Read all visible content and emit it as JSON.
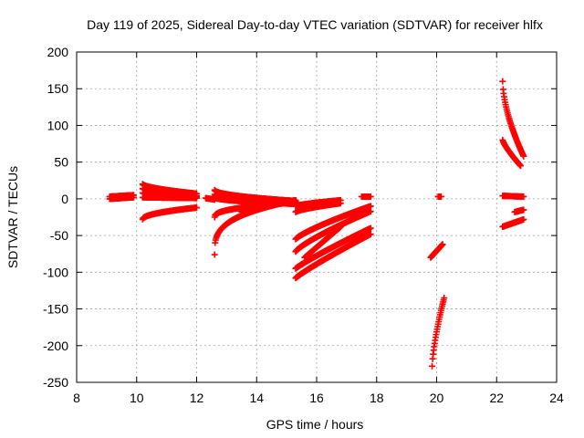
{
  "chart_data": {
    "type": "scatter",
    "title": "Day 119 of 2025, Sidereal Day-to-day VTEC variation (SDTVAR) for receiver hlfx",
    "xlabel": "GPS time / hours",
    "ylabel": "SDTVAR / TECUs",
    "xlim": [
      8,
      24
    ],
    "ylim": [
      -250,
      200
    ],
    "xticks": [
      8,
      10,
      12,
      14,
      16,
      18,
      20,
      22,
      24
    ],
    "yticks": [
      -250,
      -200,
      -150,
      -100,
      -50,
      0,
      50,
      100,
      150,
      200
    ],
    "grid": true,
    "marker": "plus",
    "color": "#ff0000",
    "segments": [
      {
        "x0": 9.1,
        "x1": 9.9,
        "y0": 3,
        "y1": 5,
        "curve": 1
      },
      {
        "x0": 9.1,
        "x1": 9.9,
        "y0": 0,
        "y1": 2,
        "curve": 1
      },
      {
        "x0": 10.2,
        "x1": 12.0,
        "y0": 20,
        "y1": 7,
        "curve": 0.6
      },
      {
        "x0": 10.2,
        "x1": 12.0,
        "y0": 14,
        "y1": 4,
        "curve": 0.6
      },
      {
        "x0": 10.2,
        "x1": 12.0,
        "y0": 8,
        "y1": 3,
        "curve": 0.6
      },
      {
        "x0": 10.2,
        "x1": 12.0,
        "y0": 2,
        "y1": 1,
        "curve": 1
      },
      {
        "x0": 10.2,
        "x1": 12.0,
        "y0": -28,
        "y1": -12,
        "curve": 0.5
      },
      {
        "x0": 12.3,
        "x1": 12.6,
        "y0": 1,
        "y1": -1,
        "curve": 1
      },
      {
        "x0": 12.6,
        "x1": 15.3,
        "y0": 12,
        "y1": -3,
        "curve": 0.5
      },
      {
        "x0": 12.6,
        "x1": 15.3,
        "y0": 6,
        "y1": -5,
        "curve": 0.5
      },
      {
        "x0": 12.6,
        "x1": 15.3,
        "y0": 2,
        "y1": -7,
        "curve": 0.5
      },
      {
        "x0": 12.6,
        "x1": 15.3,
        "y0": -25,
        "y1": -5,
        "curve": 0.4
      },
      {
        "x0": 12.6,
        "x1": 15.3,
        "y0": -76,
        "y1": -2,
        "curve": 0.3
      },
      {
        "x0": 13.5,
        "x1": 15.3,
        "y0": -18,
        "y1": -2,
        "curve": 0.6
      },
      {
        "x0": 15.3,
        "x1": 16.8,
        "y0": -10,
        "y1": -2,
        "curve": 0.7
      },
      {
        "x0": 15.3,
        "x1": 16.8,
        "y0": -18,
        "y1": -6,
        "curve": 0.7
      },
      {
        "x0": 15.3,
        "x1": 17.8,
        "y0": -55,
        "y1": -10,
        "curve": 0.8
      },
      {
        "x0": 15.3,
        "x1": 17.8,
        "y0": -72,
        "y1": -17,
        "curve": 0.8
      },
      {
        "x0": 15.3,
        "x1": 17.8,
        "y0": -95,
        "y1": -40,
        "curve": 0.9
      },
      {
        "x0": 15.3,
        "x1": 17.8,
        "y0": -108,
        "y1": -48,
        "curve": 0.9
      },
      {
        "x0": 15.6,
        "x1": 16.8,
        "y0": -80,
        "y1": -38,
        "curve": 1
      },
      {
        "x0": 17.5,
        "x1": 17.8,
        "y0": 3,
        "y1": 3,
        "curve": 1
      },
      {
        "x0": 19.8,
        "x1": 20.2,
        "y0": -80,
        "y1": -62,
        "curve": 1
      },
      {
        "x0": 19.85,
        "x1": 20.25,
        "y0": -228,
        "y1": -135,
        "curve": 0.7
      },
      {
        "x0": 20.05,
        "x1": 20.15,
        "y0": 3,
        "y1": 3,
        "curve": 1
      },
      {
        "x0": 22.2,
        "x1": 22.9,
        "y0": 160,
        "y1": 58,
        "curve": 0.6
      },
      {
        "x0": 22.2,
        "x1": 22.8,
        "y0": 80,
        "y1": 45,
        "curve": 0.8
      },
      {
        "x0": 22.2,
        "x1": 22.9,
        "y0": 4,
        "y1": 3,
        "curve": 1
      },
      {
        "x0": 22.2,
        "x1": 22.9,
        "y0": -38,
        "y1": -28,
        "curve": 1
      },
      {
        "x0": 22.6,
        "x1": 22.9,
        "y0": -18,
        "y1": -15,
        "curve": 1
      }
    ]
  }
}
